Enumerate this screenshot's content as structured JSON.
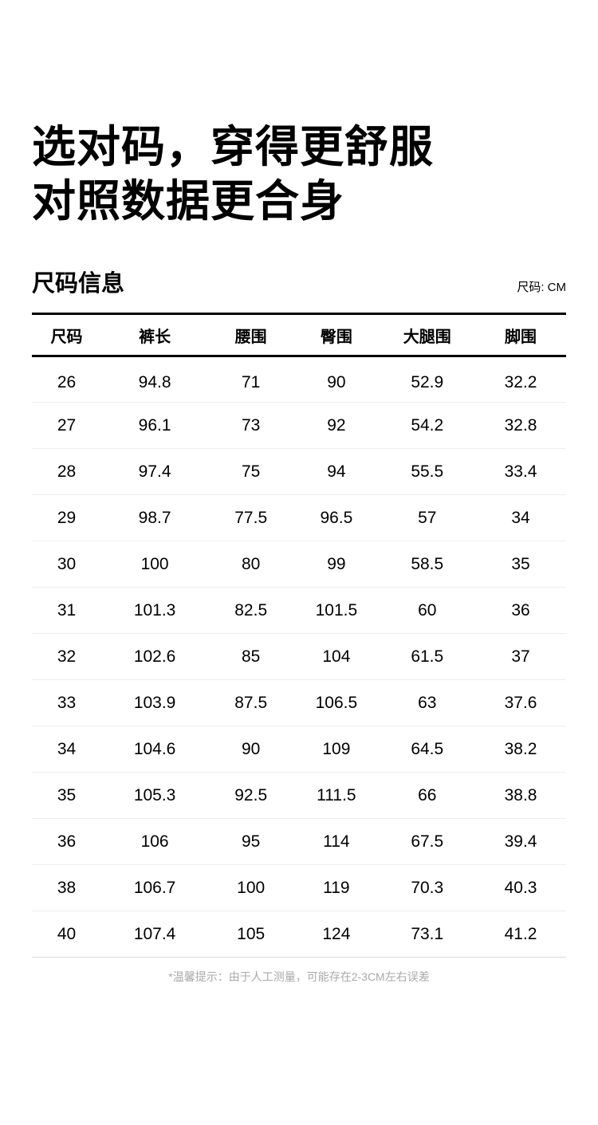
{
  "title": {
    "line1": "选对码，穿得更舒服",
    "line2": "对照数据更合身"
  },
  "section": {
    "heading": "尺码信息",
    "unit_label": "尺码: CM"
  },
  "table": {
    "columns": [
      "尺码",
      "裤长",
      "腰围",
      "臀围",
      "大腿围",
      "脚围"
    ],
    "column_widths": [
      "13%",
      "20%",
      "16%",
      "16%",
      "18%",
      "17%"
    ],
    "rows": [
      [
        "26",
        "94.8",
        "71",
        "90",
        "52.9",
        "32.2"
      ],
      [
        "27",
        "96.1",
        "73",
        "92",
        "54.2",
        "32.8"
      ],
      [
        "28",
        "97.4",
        "75",
        "94",
        "55.5",
        "33.4"
      ],
      [
        "29",
        "98.7",
        "77.5",
        "96.5",
        "57",
        "34"
      ],
      [
        "30",
        "100",
        "80",
        "99",
        "58.5",
        "35"
      ],
      [
        "31",
        "101.3",
        "82.5",
        "101.5",
        "60",
        "36"
      ],
      [
        "32",
        "102.6",
        "85",
        "104",
        "61.5",
        "37"
      ],
      [
        "33",
        "103.9",
        "87.5",
        "106.5",
        "63",
        "37.6"
      ],
      [
        "34",
        "104.6",
        "90",
        "109",
        "64.5",
        "38.2"
      ],
      [
        "35",
        "105.3",
        "92.5",
        "111.5",
        "66",
        "38.8"
      ],
      [
        "36",
        "106",
        "95",
        "114",
        "67.5",
        "39.4"
      ],
      [
        "38",
        "106.7",
        "100",
        "119",
        "70.3",
        "40.3"
      ],
      [
        "40",
        "107.4",
        "105",
        "124",
        "73.1",
        "41.2"
      ]
    ]
  },
  "footnote": "*温馨提示：由于人工测量，可能存在2-3CM左右误差",
  "colors": {
    "text": "#000000",
    "table_border": "#000000",
    "row_separator": "#ededed",
    "table_bottom_line": "#d9d9d9",
    "footnote_text": "#a9a9a9",
    "background": "#ffffff"
  }
}
